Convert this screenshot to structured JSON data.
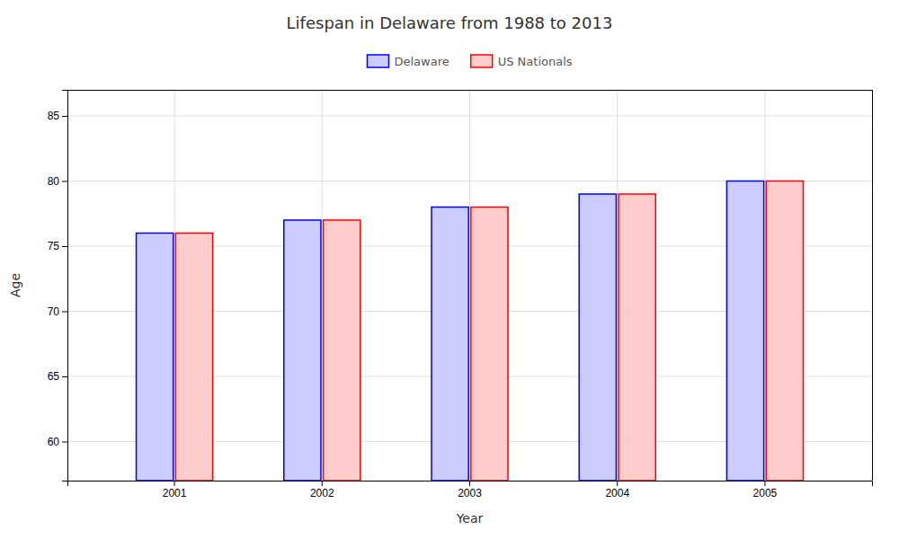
{
  "chart_data": {
    "type": "bar",
    "title": "Lifespan in Delaware from 1988 to 2013",
    "x_label": "Year",
    "y_label": "Age",
    "categories": [
      "2001",
      "2002",
      "2003",
      "2004",
      "2005"
    ],
    "series": [
      {
        "name": "Delaware",
        "color": "#0000ff",
        "values": [
          76,
          77,
          78,
          79,
          80
        ]
      },
      {
        "name": "US Nationals",
        "color": "#ff0000",
        "values": [
          76,
          77,
          78,
          79,
          80
        ]
      }
    ],
    "ylim": [
      57,
      87
    ],
    "yticks": [
      60,
      65,
      70,
      75,
      80,
      85
    ],
    "grid": true,
    "legend": "top"
  }
}
